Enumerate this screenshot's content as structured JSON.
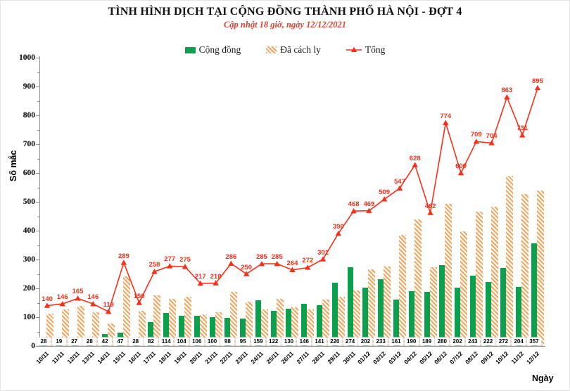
{
  "title": "TÌNH HÌNH DỊCH TẠI CỘNG ĐỒNG THÀNH PHỐ HÀ NỘI - ĐỢT 4",
  "subtitle": "Cập nhật 18 giờ, ngày 12/12/2021",
  "colors": {
    "community_green": "#0aa14e",
    "quarantine_orange": "#f5a55c",
    "total_red": "#f83019"
  },
  "chart_data": {
    "type": "bar",
    "subtype": "grouped bars with line overlay",
    "title": "TÌNH HÌNH DỊCH TẠI CỘNG ĐỒNG THÀNH PHỐ HÀ NỘI - ĐỢT 4",
    "xlabel": "Ngày",
    "ylabel": "Số mắc",
    "ylim": [
      0,
      1000
    ],
    "ytick_step": 100,
    "grid": false,
    "legend_position": "top-center",
    "categories": [
      "10/11",
      "11/11",
      "12/11",
      "13/11",
      "14/11",
      "15/11",
      "16/11",
      "17/11",
      "18/11",
      "19/11",
      "20/11",
      "21/11",
      "22/11",
      "23/11",
      "24/11",
      "25/11",
      "26/11",
      "27/11",
      "28/11",
      "29/11",
      "30/11",
      "01/12",
      "02/12",
      "03/12",
      "04/12",
      "05/12",
      "06/12",
      "07/12",
      "08/12",
      "09/12",
      "10/12",
      "11/12",
      "12/12"
    ],
    "series": [
      {
        "name": "Cộng đồng",
        "type": "bar",
        "color": "#0aa14e",
        "values": [
          28,
          19,
          27,
          28,
          42,
          47,
          28,
          82,
          114,
          104,
          106,
          100,
          98,
          95,
          159,
          122,
          130,
          146,
          141,
          220,
          274,
          202,
          233,
          161,
          190,
          189,
          280,
          202,
          243,
          222,
          272,
          204,
          357
        ]
      },
      {
        "name": "Đã cách ly",
        "type": "bar",
        "color": "#f5a55c",
        "pattern": "diagonal-hatch",
        "values": [
          112,
          127,
          138,
          118,
          77,
          242,
          122,
          176,
          163,
          171,
          111,
          118,
          188,
          155,
          126,
          163,
          134,
          126,
          160,
          170,
          194,
          267,
          276,
          386,
          438,
          273,
          494,
          398,
          466,
          482,
          591,
          527,
          538
        ]
      },
      {
        "name": "Tổng",
        "type": "line",
        "color": "#f83019",
        "marker": "triangle",
        "values": [
          140,
          146,
          165,
          146,
          119,
          289,
          150,
          258,
          277,
          275,
          217,
          218,
          286,
          250,
          285,
          285,
          264,
          272,
          301,
          390,
          468,
          469,
          509,
          547,
          628,
          462,
          774,
          600,
          709,
          704,
          863,
          731,
          895
        ]
      }
    ]
  }
}
